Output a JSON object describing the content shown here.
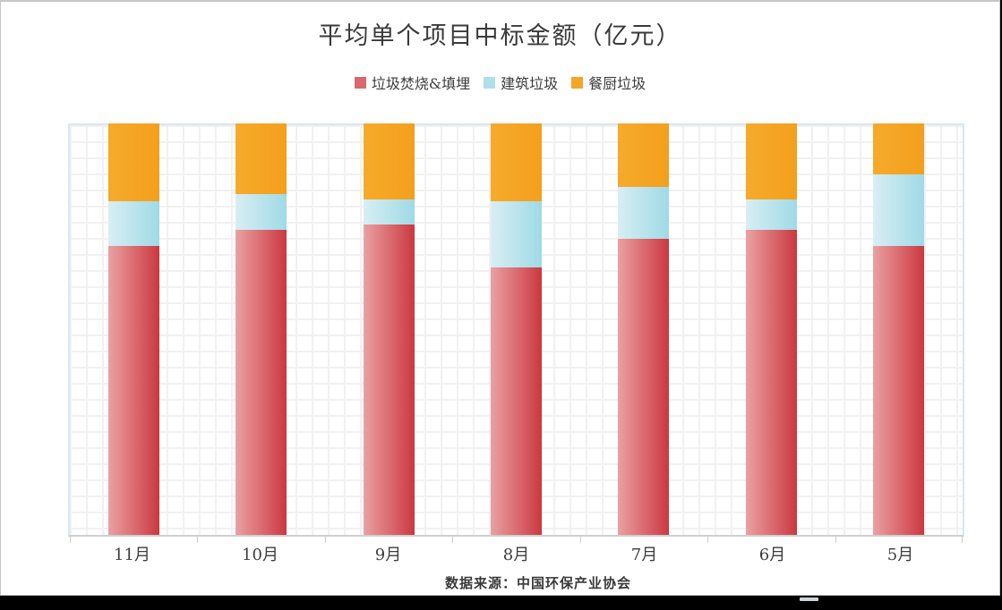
{
  "title": "平均单个项目中标金额（亿元）",
  "legend": {
    "items": [
      {
        "label": "垃圾焚烧&填埋",
        "swatch_color": "#D8696E"
      },
      {
        "label": "建筑垃圾",
        "swatch_color": "#AFDFE9"
      },
      {
        "label": "餐厨垃圾",
        "swatch_color": "#F5A623"
      }
    ]
  },
  "chart_data": {
    "type": "bar",
    "stacked": "percent",
    "title": "平均单个项目中标金额（亿元）",
    "categories": [
      "11月",
      "10月",
      "9月",
      "8月",
      "7月",
      "6月",
      "5月"
    ],
    "series": [
      {
        "name": "垃圾焚烧&填埋",
        "values": [
          70.3,
          74.2,
          75.5,
          64.9,
          72.0,
          74.2,
          70.3
        ],
        "gradient": [
          "#E9A1A3",
          "#CB383F"
        ]
      },
      {
        "name": "建筑垃圾",
        "values": [
          10.8,
          8.7,
          6.1,
          16.1,
          12.6,
          7.4,
          17.4
        ],
        "gradient": [
          "#D8EEF3",
          "#9FDAE6"
        ]
      },
      {
        "name": "餐厨垃圾",
        "values": [
          18.9,
          17.1,
          18.4,
          19.0,
          15.4,
          18.4,
          12.3
        ],
        "gradient": [
          "#F6AA2B",
          "#F3A01C"
        ]
      }
    ],
    "xlabel": "",
    "ylabel": "",
    "ylim": [
      0,
      100
    ],
    "grid": true,
    "legend_position": "top",
    "value_note": "百分比堆叠，数值为按像素高度估算的占比（图中无数值轴标签）"
  },
  "footer": {
    "source_label": "数据来源：中国环保产业协会"
  }
}
